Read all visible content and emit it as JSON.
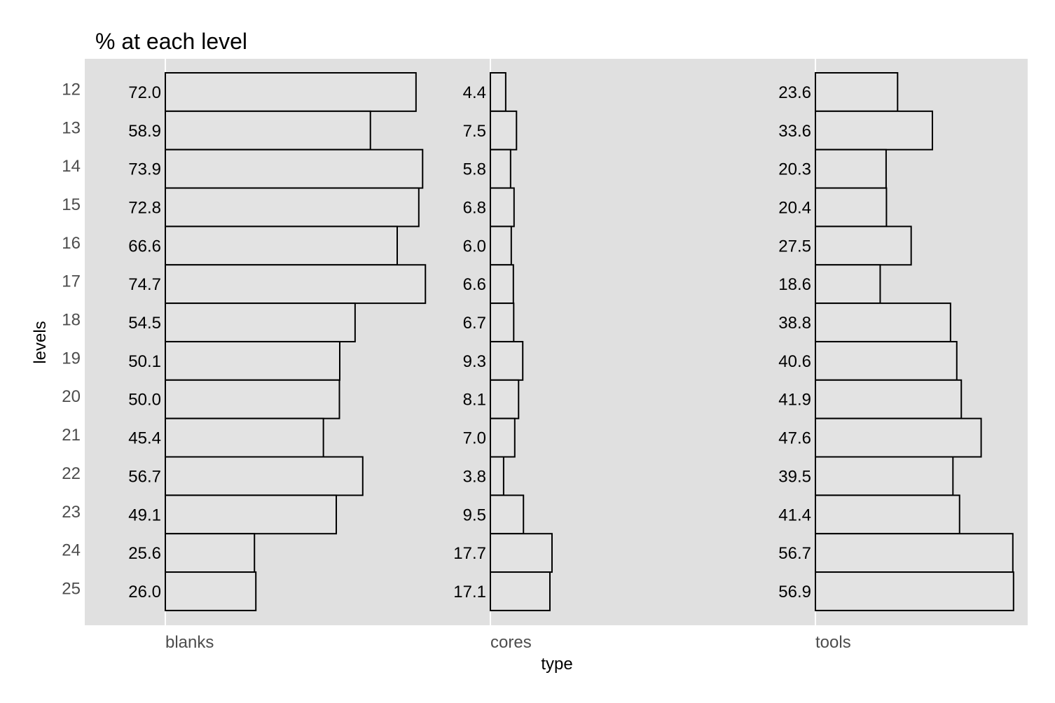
{
  "chart_data": {
    "type": "bar",
    "orientation": "horizontal",
    "title": "% at each level",
    "xlabel": "type",
    "ylabel": "levels",
    "grid": true,
    "categories": [
      "12",
      "13",
      "14",
      "15",
      "16",
      "17",
      "18",
      "19",
      "20",
      "21",
      "22",
      "23",
      "24",
      "25"
    ],
    "groups": [
      "blanks",
      "cores",
      "tools"
    ],
    "series": [
      {
        "name": "blanks",
        "values": [
          72.0,
          58.9,
          73.9,
          72.8,
          66.6,
          74.7,
          54.5,
          50.1,
          50.0,
          45.4,
          56.7,
          49.1,
          25.6,
          26.0
        ]
      },
      {
        "name": "cores",
        "values": [
          4.4,
          7.5,
          5.8,
          6.8,
          6.0,
          6.6,
          6.7,
          9.3,
          8.1,
          7.0,
          3.8,
          9.5,
          17.7,
          17.1
        ]
      },
      {
        "name": "tools",
        "values": [
          23.6,
          33.6,
          20.3,
          20.4,
          27.5,
          18.6,
          38.8,
          40.6,
          41.9,
          47.6,
          39.5,
          41.4,
          56.7,
          56.9
        ]
      }
    ],
    "labels": [
      [
        "72.0",
        "58.9",
        "73.9",
        "72.8",
        "66.6",
        "74.7",
        "54.5",
        "50.1",
        "50.0",
        "45.4",
        "56.7",
        "49.1",
        "25.6",
        "26.0"
      ],
      [
        "4.4",
        "7.5",
        "5.8",
        "6.8",
        "6.0",
        "6.6",
        "6.7",
        "9.3",
        "8.1",
        "7.0",
        "3.8",
        "9.5",
        "17.7",
        "17.1"
      ],
      [
        "23.6",
        "33.6",
        "20.3",
        "20.4",
        "27.5",
        "18.6",
        "38.8",
        "40.6",
        "41.9",
        "47.6",
        "39.5",
        "41.4",
        "56.7",
        "56.9"
      ]
    ]
  }
}
